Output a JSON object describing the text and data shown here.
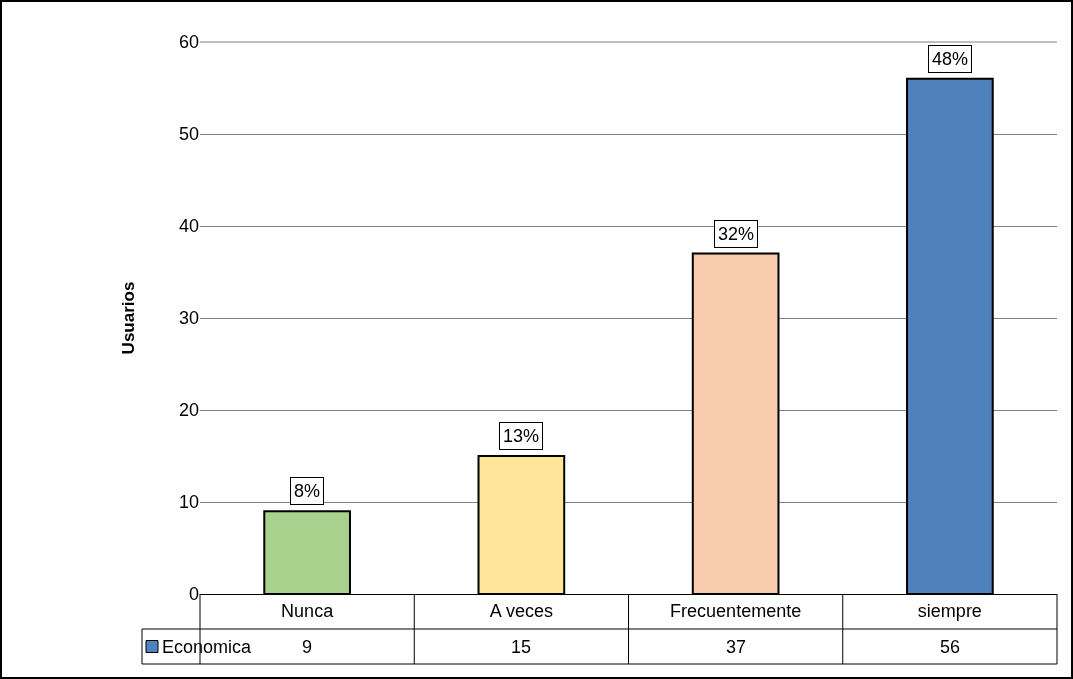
{
  "chart_data": {
    "type": "bar",
    "ylabel": "Usuarios",
    "categories": [
      "Nunca",
      "A veces",
      "Frecuentemente",
      "siempre"
    ],
    "series": [
      {
        "name": "Economica",
        "color": "#4f81bd",
        "colors": [
          "#a9d18e",
          "#ffe699",
          "#f8cbad",
          "#4f81bd"
        ],
        "values": [
          9,
          15,
          37,
          56
        ],
        "value_labels": [
          "9",
          "15",
          "37",
          "56"
        ]
      }
    ],
    "annotations": [
      {
        "text": "8%",
        "x": "Nunca",
        "y": 9
      },
      {
        "text": "13%",
        "x": "A veces",
        "y": 15
      },
      {
        "text": "32%",
        "x": "Frecuentemente",
        "y": 37
      },
      {
        "text": "48%",
        "x": "siempre",
        "y": 56
      }
    ],
    "ylim": [
      0,
      60
    ],
    "yticks": [
      0,
      10,
      20,
      30,
      40,
      50,
      60
    ],
    "grid": "y"
  }
}
